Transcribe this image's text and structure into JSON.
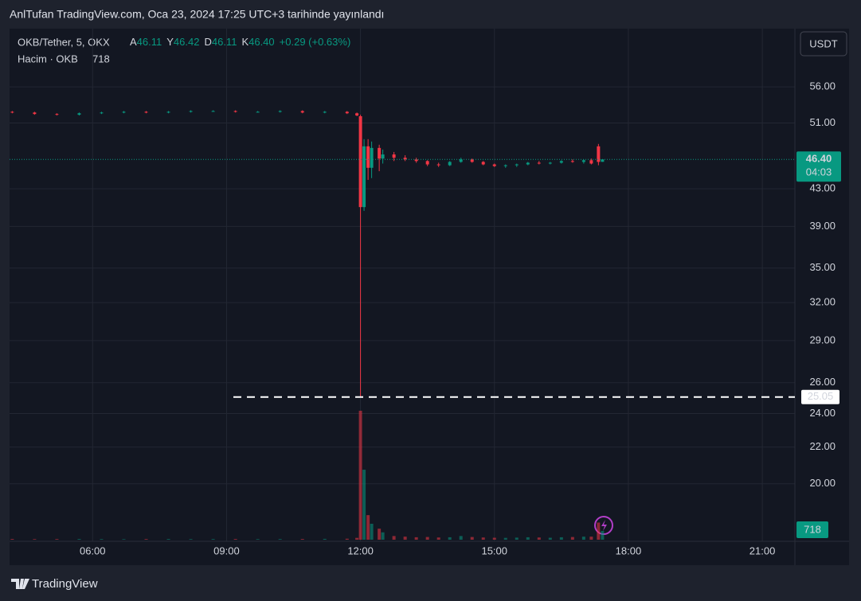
{
  "header": {
    "published": "AnlTufan TradingView.com, Oca 23, 2024 17:25 UTC+3 tarihinde yayınlandı",
    "brand": "TradingView"
  },
  "chart_data": {
    "type": "candlestick",
    "symbol": "OKB/Tether, 5, OKX",
    "ohlc_legend": [
      {
        "key": "A",
        "value": "46.11"
      },
      {
        "key": "Y",
        "value": "46.42"
      },
      {
        "key": "D",
        "value": "46.11"
      },
      {
        "key": "K",
        "value": "46.40"
      }
    ],
    "change": "+0.29 (+0.63%)",
    "volume_label": "Hacim · OKB",
    "currency": "USDT",
    "countdown": "04:03",
    "up_color": "#089981",
    "down_color": "#f23645",
    "log_scale": true,
    "grid": true,
    "x": [
      4.2,
      4.7,
      5.2,
      5.7,
      6.2,
      6.7,
      7.2,
      7.7,
      8.2,
      8.7,
      9.2,
      9.7,
      10.2,
      10.7,
      11.2,
      11.7,
      11.92,
      12.0,
      12.08,
      12.17,
      12.25,
      12.42,
      12.5,
      12.75,
      13.0,
      13.25,
      13.5,
      13.75,
      14.0,
      14.25,
      14.5,
      14.75,
      15.0,
      15.25,
      15.5,
      15.75,
      16.0,
      16.25,
      16.5,
      16.75,
      17.0,
      17.17,
      17.33,
      17.42
    ],
    "open": [
      52.5,
      52.4,
      52.2,
      52.1,
      52.3,
      52.4,
      52.5,
      52.4,
      52.5,
      52.6,
      52.6,
      52.5,
      52.5,
      52.6,
      52.4,
      52.5,
      52.3,
      51.9,
      41.0,
      48.0,
      45.4,
      47.8,
      46.5,
      47.0,
      46.6,
      46.4,
      46.2,
      45.8,
      45.7,
      46.1,
      46.4,
      46.1,
      45.8,
      45.6,
      45.7,
      45.8,
      46.0,
      45.9,
      46.0,
      46.2,
      46.1,
      46.3,
      48.0,
      46.11
    ],
    "high": [
      52.6,
      52.5,
      52.3,
      52.4,
      52.5,
      52.6,
      52.6,
      52.6,
      52.7,
      52.7,
      52.7,
      52.6,
      52.7,
      52.7,
      52.6,
      52.6,
      52.4,
      52.1,
      48.9,
      48.9,
      48.6,
      48.2,
      47.6,
      47.3,
      46.9,
      46.6,
      46.3,
      46.0,
      46.2,
      46.6,
      46.5,
      46.2,
      45.9,
      45.8,
      45.9,
      46.1,
      46.2,
      46.1,
      46.3,
      46.4,
      46.4,
      46.5,
      48.3,
      46.42
    ],
    "low": [
      52.3,
      52.1,
      52.0,
      52.0,
      52.2,
      52.3,
      52.3,
      52.3,
      52.4,
      52.5,
      52.4,
      52.4,
      52.4,
      52.3,
      52.3,
      52.2,
      51.9,
      25.05,
      40.6,
      44.0,
      44.2,
      45.0,
      45.9,
      46.2,
      46.2,
      46.0,
      45.6,
      45.5,
      45.6,
      46.0,
      46.0,
      45.7,
      45.5,
      45.4,
      45.5,
      45.7,
      45.8,
      45.8,
      45.9,
      46.0,
      45.9,
      45.8,
      45.7,
      46.11
    ],
    "close": [
      52.4,
      52.2,
      52.1,
      52.3,
      52.4,
      52.5,
      52.4,
      52.5,
      52.6,
      52.6,
      52.5,
      52.5,
      52.6,
      52.4,
      52.5,
      52.3,
      52.0,
      41.0,
      48.0,
      45.4,
      47.8,
      46.5,
      47.0,
      46.6,
      46.4,
      46.2,
      45.8,
      45.7,
      46.1,
      46.4,
      46.1,
      45.8,
      45.6,
      45.7,
      45.8,
      46.0,
      45.9,
      46.0,
      46.2,
      46.1,
      46.3,
      45.9,
      46.1,
      46.4
    ],
    "volume": [
      60,
      50,
      55,
      60,
      50,
      45,
      55,
      60,
      50,
      55,
      60,
      50,
      55,
      60,
      70,
      80,
      150,
      10500,
      5700,
      2000,
      1300,
      900,
      600,
      300,
      250,
      200,
      220,
      180,
      200,
      300,
      220,
      180,
      160,
      150,
      170,
      200,
      180,
      160,
      200,
      220,
      250,
      250,
      1400,
      718
    ],
    "xlim": [
      4.14,
      21.73
    ],
    "ylim": [
      17.3,
      65
    ],
    "volume_max": 10500,
    "xticks": [
      {
        "value": 6,
        "label": "06:00"
      },
      {
        "value": 9,
        "label": "09:00"
      },
      {
        "value": 12,
        "label": "12:00"
      },
      {
        "value": 15,
        "label": "15:00"
      },
      {
        "value": 18,
        "label": "18:00"
      },
      {
        "value": 21,
        "label": "21:00"
      }
    ],
    "yticks": [
      {
        "value": 56,
        "label": "56.00"
      },
      {
        "value": 51,
        "label": "51.00"
      },
      {
        "value": 43,
        "label": "43.00"
      },
      {
        "value": 39,
        "label": "39.00"
      },
      {
        "value": 35,
        "label": "35.00"
      },
      {
        "value": 32,
        "label": "32.00"
      },
      {
        "value": 29,
        "label": "29.00"
      },
      {
        "value": 26,
        "label": "26.00"
      },
      {
        "value": 24,
        "label": "24.00"
      },
      {
        "value": 22,
        "label": "22.00"
      },
      {
        "value": 20,
        "label": "20.00"
      }
    ],
    "last_price": {
      "value": 46.4,
      "label": "46.40"
    },
    "hline": {
      "value": 25.05,
      "label": "25.05"
    }
  }
}
